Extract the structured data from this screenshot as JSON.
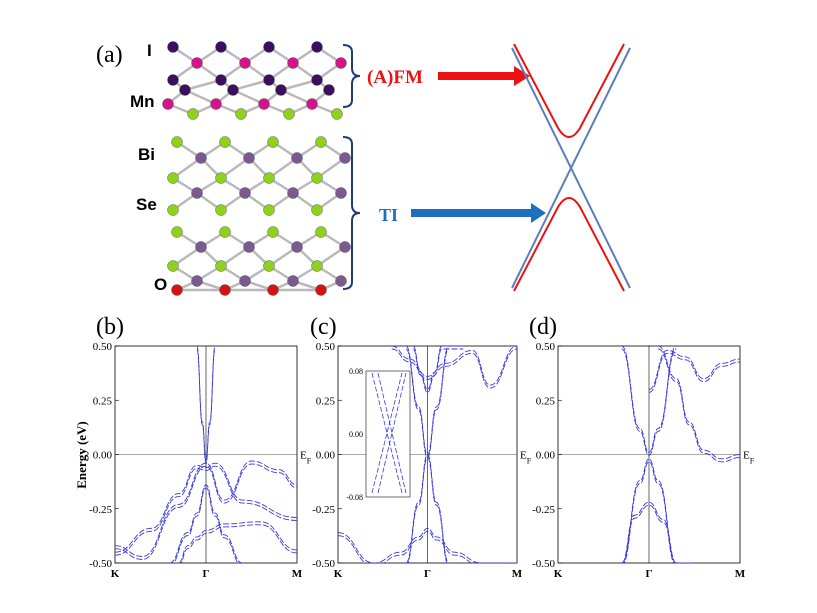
{
  "panel_a": {
    "label": "(a)",
    "atom_labels": [
      "I",
      "Mn",
      "Bi",
      "Se",
      "O"
    ],
    "fm_label": "(A)FM",
    "ti_label": "TI",
    "colors": {
      "I": "#3d0f5e",
      "Mn": "#d4148c",
      "Bi": "#7a5a8f",
      "Se": "#8fd11f",
      "O": "#d41414",
      "bond": "#b9b9b9",
      "bracket": "#1f3c78",
      "fm_arrow": "#ee1111",
      "ti_arrow": "#1f6fc0",
      "dirac_blue": "#5a7fb8",
      "gapped_red": "#ee1111"
    }
  },
  "chart_data": [
    {
      "type": "line",
      "panel": "(b)",
      "ylabel": "Energy (eV)",
      "ylim": [
        -0.5,
        0.5
      ],
      "yticks": [
        "0.50",
        "0.25",
        "0.00",
        "-0.25",
        "-0.50"
      ],
      "x_labels": [
        "K",
        "Γ",
        "M"
      ],
      "fermi_label": "E_F",
      "series": [
        {
          "x": [
            0,
            0.15,
            0.35,
            0.5,
            0.6,
            0.75,
            0.9,
            1.0
          ],
          "y": [
            -0.42,
            -0.47,
            -0.23,
            -0.04,
            -0.21,
            -0.03,
            -0.07,
            -0.14
          ]
        },
        {
          "x": [
            0,
            0.2,
            0.35,
            0.45,
            0.5,
            0.55,
            0.7,
            1.0
          ],
          "y": [
            -0.45,
            -0.34,
            -0.18,
            -0.05,
            -0.06,
            -0.04,
            -0.21,
            -0.29
          ]
        },
        {
          "x": [
            0.3,
            0.4,
            0.45,
            0.5,
            0.55,
            0.6,
            0.7
          ],
          "y": [
            -0.5,
            -0.36,
            -0.27,
            -0.14,
            -0.27,
            -0.37,
            -0.5
          ]
        },
        {
          "x": [
            0.35,
            0.4,
            0.45,
            0.5,
            0.6,
            0.8,
            1.0
          ],
          "y": [
            -0.5,
            -0.42,
            -0.38,
            -0.35,
            -0.32,
            -0.31,
            -0.44
          ]
        },
        {
          "x": [
            0.45,
            0.48,
            0.5,
            0.52,
            0.55
          ],
          "y": [
            0.5,
            0.15,
            -0.03,
            0.15,
            0.5
          ]
        }
      ]
    },
    {
      "type": "line",
      "panel": "(c)",
      "ylim": [
        -0.5,
        0.5
      ],
      "yticks": [
        "0.50",
        "0.25",
        "0.00",
        "-0.25",
        "-0.50"
      ],
      "x_labels": [
        "K",
        "Γ",
        "M"
      ],
      "fermi_label": "E_F",
      "inset": {
        "ylim": [
          -0.08,
          0.08
        ],
        "yticks": [
          "0.08",
          "0.00",
          "-0.08"
        ]
      },
      "series": [
        {
          "x": [
            0.38,
            0.45,
            0.5,
            0.55,
            0.62
          ],
          "y": [
            0.5,
            0.22,
            0.0,
            -0.22,
            -0.5
          ]
        },
        {
          "x": [
            0.38,
            0.45,
            0.5,
            0.55,
            0.62
          ],
          "y": [
            -0.5,
            -0.22,
            0.0,
            0.22,
            0.5
          ]
        },
        {
          "x": [
            0.3,
            0.4,
            0.5,
            0.6,
            0.75,
            0.85,
            1.0
          ],
          "y": [
            0.5,
            0.44,
            0.36,
            0.42,
            0.48,
            0.32,
            0.5
          ]
        },
        {
          "x": [
            0.0,
            0.2,
            0.35,
            0.45,
            0.5,
            0.55,
            0.65,
            0.8,
            1.0
          ],
          "y": [
            -0.36,
            -0.5,
            -0.45,
            -0.38,
            -0.34,
            -0.38,
            -0.45,
            -0.5,
            -0.5
          ]
        },
        {
          "x": [
            0.42,
            0.46,
            0.5,
            0.54,
            0.58,
            0.7
          ],
          "y": [
            0.5,
            0.38,
            0.3,
            0.38,
            0.5,
            0.5
          ]
        }
      ]
    },
    {
      "type": "line",
      "panel": "(d)",
      "ylim": [
        -0.5,
        0.5
      ],
      "yticks": [
        "0.50",
        "0.25",
        "0.00",
        "-0.25",
        "-0.50"
      ],
      "x_labels": [
        "K",
        "Γ",
        "M"
      ],
      "fermi_label": "E_F",
      "series": [
        {
          "x": [
            0.35,
            0.45,
            0.5,
            0.55,
            0.65
          ],
          "y": [
            0.5,
            0.12,
            0.01,
            0.12,
            0.5
          ]
        },
        {
          "x": [
            0.35,
            0.45,
            0.5,
            0.55,
            0.65
          ],
          "y": [
            -0.5,
            -0.12,
            -0.02,
            -0.12,
            -0.5
          ]
        },
        {
          "x": [
            0.5,
            0.6,
            0.7,
            0.8,
            0.9,
            1.0
          ],
          "y": [
            0.3,
            0.48,
            0.45,
            0.35,
            0.42,
            0.44
          ]
        },
        {
          "x": [
            0.55,
            0.65,
            0.72,
            0.8,
            0.9,
            1.0
          ],
          "y": [
            0.5,
            0.35,
            0.15,
            0.02,
            -0.02,
            0.0
          ]
        },
        {
          "x": [
            0.35,
            0.42,
            0.5,
            0.58,
            0.65,
            0.75
          ],
          "y": [
            -0.5,
            -0.28,
            -0.22,
            -0.3,
            -0.5,
            -0.5
          ]
        }
      ]
    }
  ]
}
